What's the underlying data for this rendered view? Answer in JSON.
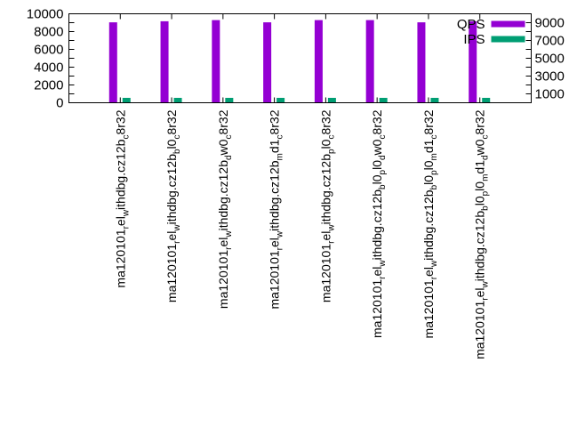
{
  "chart_data": {
    "type": "bar",
    "title": "",
    "xlabel": "",
    "ylabel": "",
    "ylim": [
      0,
      10000
    ],
    "yticks": [
      "0",
      "1000",
      "2000",
      "3000",
      "4000",
      "5000",
      "6000",
      "7000",
      "8000",
      "9000",
      "10000"
    ],
    "ytick_values": [
      0,
      1000,
      2000,
      3000,
      4000,
      5000,
      6000,
      7000,
      8000,
      9000,
      10000
    ],
    "legend_position": "top-right",
    "categories": [
      [
        "ma120101",
        "r",
        "el",
        "w",
        "ithdbg.cz12b",
        "c",
        "8r32"
      ],
      [
        "ma120101",
        "r",
        "el",
        "w",
        "ithdbg.cz12b",
        "b",
        "l0",
        "c",
        "8r32"
      ],
      [
        "ma120101",
        "r",
        "el",
        "w",
        "ithdbg.cz12b",
        "d",
        "w0",
        "c",
        "8r32"
      ],
      [
        "ma120101",
        "r",
        "el",
        "w",
        "ithdbg.cz12b",
        "m",
        "d1",
        "c",
        "8r32"
      ],
      [
        "ma120101",
        "r",
        "el",
        "w",
        "ithdbg.cz12b",
        "p",
        "l0",
        "c",
        "8r32"
      ],
      [
        "ma120101",
        "r",
        "el",
        "w",
        "ithdbg.cz12b",
        "b",
        "l0",
        "p",
        "l0",
        "d",
        "w0",
        "c",
        "8r32"
      ],
      [
        "ma120101",
        "r",
        "el",
        "w",
        "ithdbg.cz12b",
        "b",
        "l0",
        "p",
        "l0",
        "m",
        "d1",
        "c",
        "8r32"
      ],
      [
        "ma120101",
        "r",
        "el",
        "w",
        "ithdbg.cz12b",
        "b",
        "l0",
        "p",
        "l0",
        "m",
        "d1",
        "d",
        "w0",
        "c",
        "8r32"
      ]
    ],
    "category_note": "odd-indexed parts are subscripts",
    "series": [
      {
        "name": "QPS",
        "color": "#9400d3",
        "values": [
          9040,
          9160,
          9290,
          9040,
          9290,
          9290,
          9040,
          9160
        ]
      },
      {
        "name": "IPS",
        "color": "#009e73",
        "values": [
          550,
          550,
          550,
          550,
          550,
          550,
          550,
          550
        ]
      }
    ]
  }
}
